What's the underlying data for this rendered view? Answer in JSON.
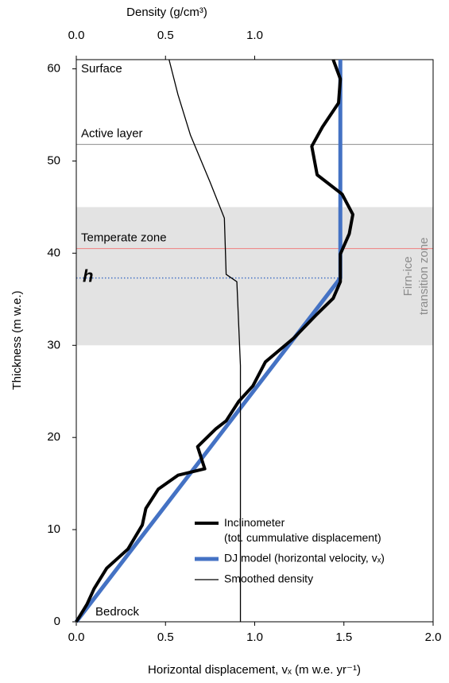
{
  "chart_data": {
    "type": "line",
    "x_label": "Horizontal displacement, vₓ (m w.e. yr⁻¹)",
    "x2_label": "Density (g/cm³)",
    "y_label": "Thickness (m w.e.)",
    "xlim": [
      0,
      2.0
    ],
    "xticks": [
      {
        "value": 0,
        "label": "0.0"
      },
      0.5,
      {
        "value": 1,
        "label": "1.0"
      },
      1.5,
      {
        "value": 2,
        "label": "2.0"
      }
    ],
    "x2lim": [
      0,
      2.0
    ],
    "x2ticks": [
      {
        "value": 0,
        "label": "0.0"
      },
      0.5,
      {
        "value": 1,
        "label": "1.0"
      }
    ],
    "ylim": [
      0,
      61
    ],
    "yticks": [
      0,
      10,
      20,
      30,
      40,
      50,
      60
    ],
    "series": [
      {
        "name": "Inclinometer (tot. cummulative displacement)",
        "color": "#000000",
        "x": [
          0,
          0.06,
          0.1,
          0.17,
          0.29,
          0.37,
          0.39,
          0.46,
          0.57,
          0.72,
          0.68,
          0.78,
          0.84,
          0.91,
          0.99,
          1.06,
          1.22,
          1.35,
          1.44,
          1.48,
          1.48,
          1.53,
          1.55,
          1.49,
          1.35,
          1.32,
          1.38,
          1.47,
          1.48,
          1.44
        ],
        "values": [
          0,
          1.9,
          3.6,
          5.8,
          7.9,
          10.5,
          12.3,
          14.4,
          15.9,
          16.6,
          19,
          20.9,
          21.8,
          23.9,
          25.6,
          28.2,
          30.8,
          33.4,
          35.1,
          36.9,
          39.9,
          42.1,
          44.2,
          46.4,
          48.5,
          51.6,
          53.7,
          56.3,
          58.9,
          61
        ]
      },
      {
        "name": "DJ model (horizontal velocity, vₓ)",
        "color": "#4472c4",
        "x": [
          0,
          1.48,
          1.48
        ],
        "values": [
          0,
          37.3,
          61
        ]
      },
      {
        "name": "Smoothed density",
        "color": "#000000",
        "axis": "x2",
        "x": [
          0.92,
          0.92,
          0.9,
          0.84,
          0.83,
          0.75,
          0.64,
          0.57,
          0.52
        ],
        "values": [
          0,
          27.8,
          36.9,
          37.7,
          43.8,
          47.7,
          52.8,
          57.2,
          61
        ]
      }
    ],
    "regions": [
      {
        "label": "Firn-ice transition zone",
        "range": [
          30,
          45
        ],
        "color": "#e3e3e3"
      }
    ],
    "reference_lines": [
      {
        "label": "Active layer",
        "y": 51.8,
        "color": "#8c8c8c"
      },
      {
        "label": "Temperate zone",
        "y": 40.5,
        "color": "#f08080"
      },
      {
        "label": "h",
        "y": 37.3,
        "color": "#4472c4"
      }
    ],
    "labels": [
      "Surface",
      "Bedrock"
    ]
  }
}
